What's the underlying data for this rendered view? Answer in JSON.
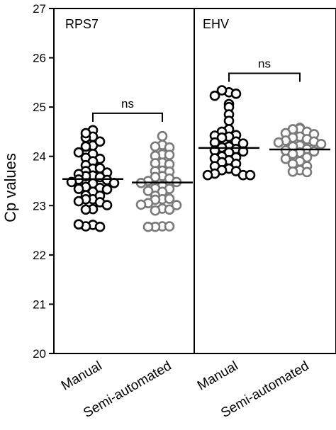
{
  "chart_data": {
    "type": "scatter",
    "ylabel": "Cp values",
    "ylim": [
      20,
      27
    ],
    "yticks": [
      "20",
      "21",
      "22",
      "23",
      "24",
      "25",
      "26",
      "27"
    ],
    "categories": [
      "Manual",
      "Semi-automated"
    ],
    "colors": {
      "Manual": "#000000",
      "Semi-automated": "#7a7a7a"
    },
    "panels": [
      {
        "title": "RPS7",
        "significance": "ns",
        "groups": [
          {
            "name": "Manual",
            "mean": 23.54,
            "points": [
              24.53,
              24.4,
              24.38,
              24.47,
              24.22,
              24.3,
              24.05,
              24.2,
              23.97,
              23.95,
              24.08,
              23.9,
              23.82,
              23.75,
              23.7,
              23.76,
              23.61,
              23.6,
              23.64,
              23.67,
              23.58,
              23.53,
              23.52,
              23.48,
              23.46,
              23.45,
              23.38,
              23.36,
              23.34,
              23.28,
              23.33,
              23.21,
              23.13,
              23.13,
              23.2,
              23.07,
              23.09,
              23.01,
              22.93,
              22.92,
              22.61,
              22.58,
              22.57,
              22.62
            ]
          },
          {
            "name": "Semi-automated",
            "mean": 23.47,
            "points": [
              24.41,
              24.23,
              24.2,
              24.18,
              24.04,
              24.01,
              24.03,
              23.87,
              23.86,
              23.84,
              23.71,
              23.7,
              23.69,
              23.6,
              23.58,
              23.55,
              23.5,
              23.48,
              23.46,
              23.4,
              23.35,
              23.34,
              23.28,
              23.3,
              23.2,
              23.13,
              23.12,
              23.14,
              23.05,
              23.01,
              23.02,
              22.94,
              22.9,
              22.92,
              22.58,
              22.57,
              22.58,
              22.57
            ]
          }
        ]
      },
      {
        "title": "EHV",
        "significance": "ns",
        "groups": [
          {
            "name": "Manual",
            "mean": 24.17,
            "points": [
              25.3,
              25.34,
              25.27,
              25.23,
              25.06,
              25.0,
              24.85,
              24.72,
              24.55,
              24.5,
              24.43,
              24.42,
              24.4,
              24.38,
              24.3,
              24.28,
              24.26,
              24.2,
              24.18,
              24.15,
              24.12,
              24.1,
              24.08,
              24.0,
              23.98,
              23.96,
              23.92,
              23.88,
              23.85,
              23.8,
              23.75,
              23.72,
              23.7,
              23.65,
              23.62,
              23.62,
              23.62
            ]
          },
          {
            "name": "Semi-automated",
            "mean": 24.14,
            "points": [
              24.58,
              24.56,
              24.55,
              24.5,
              24.47,
              24.45,
              24.4,
              24.38,
              24.35,
              24.32,
              24.3,
              24.28,
              24.25,
              24.22,
              24.2,
              24.15,
              24.12,
              24.1,
              24.08,
              24.05,
              23.98,
              23.95,
              23.9,
              23.85,
              23.8,
              23.72,
              23.69,
              23.68
            ]
          }
        ]
      }
    ]
  }
}
